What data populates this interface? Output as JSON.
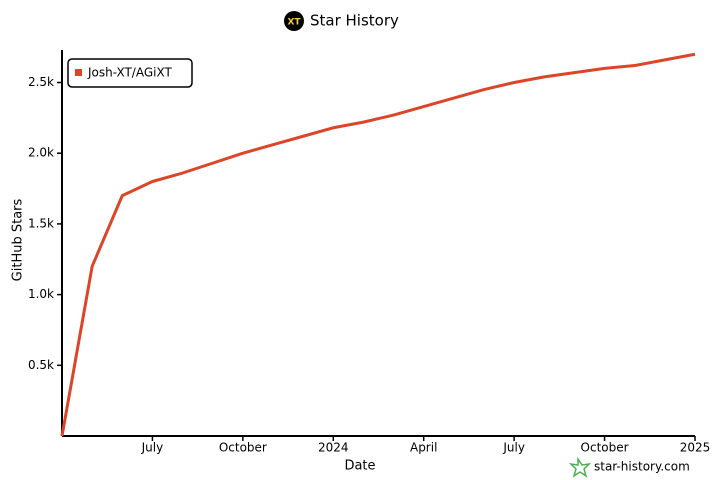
{
  "chart_data": {
    "type": "line",
    "title": "Star History",
    "x_label": "Date",
    "y_label": "GitHub Stars",
    "watermark": "star-history.com",
    "x": [
      "2023-04",
      "2023-05",
      "2023-06",
      "2023-07",
      "2023-08",
      "2023-09",
      "2023-10",
      "2023-11",
      "2023-12",
      "2024-01",
      "2024-02",
      "2024-03",
      "2024-04",
      "2024-05",
      "2024-06",
      "2024-07",
      "2024-08",
      "2024-09",
      "2024-10",
      "2024-11",
      "2024-12",
      "2025-01"
    ],
    "series": [
      {
        "name": "Josh-XT/AGiXT",
        "color": "#dd4528",
        "values": [
          0,
          1200,
          1700,
          1800,
          1860,
          1930,
          2000,
          2060,
          2120,
          2180,
          2220,
          2270,
          2330,
          2390,
          2450,
          2500,
          2540,
          2570,
          2600,
          2620,
          2660,
          2700
        ]
      }
    ],
    "xlim": [
      "2023-04",
      "2025-01"
    ],
    "xticks": [
      {
        "value": "2023-07",
        "label": "July"
      },
      {
        "value": "2023-10",
        "label": "October"
      },
      {
        "value": "2024-01",
        "label": "2024"
      },
      {
        "value": "2024-04",
        "label": "April"
      },
      {
        "value": "2024-07",
        "label": "July"
      },
      {
        "value": "2024-10",
        "label": "October"
      },
      {
        "value": "2025-01",
        "label": "2025"
      }
    ],
    "ylim": [
      0,
      2730
    ],
    "yticks": [
      {
        "value": 500,
        "label": "0.5k"
      },
      {
        "value": 1000,
        "label": "1.0k"
      },
      {
        "value": 1500,
        "label": "1.5k"
      },
      {
        "value": 2000,
        "label": "2.0k"
      },
      {
        "value": 2500,
        "label": "2.5k"
      }
    ],
    "grid": false,
    "legend": "top-left"
  }
}
